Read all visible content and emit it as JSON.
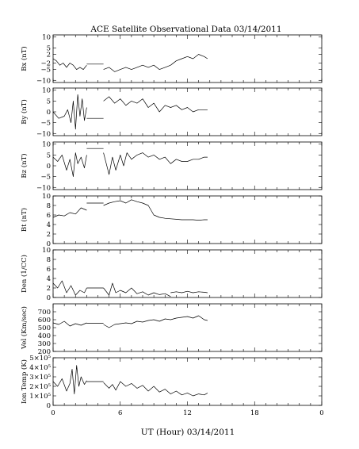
{
  "chart_data": {
    "type": "line",
    "title": "ACE Satellite Observational Data   03/14/2011",
    "xlabel": "UT (Hour)   03/14/2011",
    "x_ticks": [
      "0",
      "6",
      "12",
      "18",
      "0"
    ],
    "xlim": [
      0,
      24
    ],
    "panels": [
      {
        "id": "bx",
        "ylabel": "Bx (nT)",
        "ylim": [
          -11,
          11
        ],
        "tick_values": [
          10,
          5,
          2,
          -2,
          -5,
          -10
        ],
        "tick_labels": [
          "10",
          "5",
          "2",
          "−2",
          "−5",
          "−10"
        ],
        "series": [
          {
            "x": [
              0,
              0.3,
              0.6,
              0.9,
              1.2,
              1.5,
              1.8,
              2.1,
              2.4,
              2.7,
              3.0
            ],
            "y": [
              0,
              -1,
              -3,
              -2,
              -4,
              -2,
              -3,
              -5,
              -4,
              -5,
              -3
            ]
          },
          {
            "x": [
              3.0,
              4.5
            ],
            "y": [
              -2.5,
              -2.5
            ]
          },
          {
            "x": [
              4.5,
              5.0,
              5.5,
              6.0,
              6.5,
              7.0,
              7.5,
              8.0,
              8.5,
              9.0,
              9.5,
              10.0,
              10.5
            ],
            "y": [
              -5,
              -4,
              -6,
              -5,
              -4,
              -5,
              -4,
              -3,
              -4,
              -3,
              -5,
              -4,
              -3
            ]
          },
          {
            "x": [
              10.5,
              11.0,
              11.5,
              12.0,
              12.5,
              13.0,
              13.5,
              13.8
            ],
            "y": [
              -3,
              -1,
              0,
              1,
              0,
              2,
              1,
              0
            ]
          }
        ]
      },
      {
        "id": "by",
        "ylabel": "By (nT)",
        "ylim": [
          -11,
          11
        ],
        "tick_values": [
          10,
          5,
          0,
          -5,
          -10
        ],
        "tick_labels": [
          "10",
          "5",
          "0",
          "−5",
          "−10"
        ],
        "series": [
          {
            "x": [
              0,
              0.5,
              1.0,
              1.3,
              1.6,
              1.8,
              2.0,
              2.2,
              2.4,
              2.6,
              2.8,
              3.0
            ],
            "y": [
              0,
              -3,
              -2,
              1,
              -5,
              5,
              -8,
              8,
              -2,
              6,
              -4,
              2
            ]
          },
          {
            "x": [
              3.0,
              4.5
            ],
            "y": [
              -3,
              -3
            ]
          },
          {
            "x": [
              4.5,
              5.0,
              5.5,
              6.0,
              6.5,
              7.0,
              7.5,
              8.0,
              8.5,
              9.0,
              9.5,
              10.0,
              10.5,
              11.0,
              11.5,
              12.0,
              12.5,
              13.0,
              13.5,
              13.8
            ],
            "y": [
              5,
              7,
              4,
              6,
              3,
              5,
              4,
              6,
              2,
              4,
              0,
              3,
              2,
              3,
              1,
              2,
              0,
              1,
              1,
              1
            ]
          }
        ]
      },
      {
        "id": "bz",
        "ylabel": "Bz (nT)",
        "ylim": [
          -11,
          11
        ],
        "tick_values": [
          10,
          5,
          0,
          -5,
          -10
        ],
        "tick_labels": [
          "10",
          "5",
          "0",
          "−5",
          "−10"
        ],
        "series": [
          {
            "x": [
              0,
              0.4,
              0.8,
              1.2,
              1.5,
              1.8,
              2.0,
              2.2,
              2.5,
              2.8,
              3.0
            ],
            "y": [
              4,
              2,
              5,
              -2,
              3,
              -5,
              6,
              1,
              4,
              -1,
              5
            ]
          },
          {
            "x": [
              3.0,
              4.5
            ],
            "y": [
              8,
              8
            ]
          },
          {
            "x": [
              4.5,
              5.0,
              5.3,
              5.6,
              6.0,
              6.3,
              6.6,
              7.0,
              7.5,
              8.0,
              8.5,
              9.0,
              9.5,
              10.0,
              10.5,
              11.0,
              11.5,
              12.0,
              12.5,
              13.0,
              13.5,
              13.8
            ],
            "y": [
              6,
              -4,
              4,
              -2,
              5,
              0,
              6,
              3,
              5,
              6,
              4,
              5,
              3,
              4,
              1,
              3,
              2,
              2,
              3,
              3,
              4,
              4
            ]
          }
        ]
      },
      {
        "id": "bt",
        "ylabel": "Bt (nT)",
        "ylim": [
          0,
          10
        ],
        "tick_values": [
          10,
          8,
          6,
          4,
          2,
          0
        ],
        "tick_labels": [
          "10",
          "8",
          "6",
          "4",
          "2",
          "0"
        ],
        "series": [
          {
            "x": [
              0,
              0.5,
              1.0,
              1.5,
              2.0,
              2.5,
              3.0
            ],
            "y": [
              5.5,
              6,
              5.8,
              6.5,
              6.2,
              7.5,
              7
            ]
          },
          {
            "x": [
              3.0,
              4.5
            ],
            "y": [
              8.5,
              8.5
            ]
          },
          {
            "x": [
              4.5,
              5.0,
              5.5,
              6.0,
              6.5,
              7.0,
              7.5,
              8.0,
              8.5,
              9.0,
              9.5,
              10.0,
              10.5,
              11.0,
              11.5,
              12.0,
              12.5,
              13.0,
              13.5,
              13.8
            ],
            "y": [
              8,
              8.5,
              8.8,
              9,
              8.5,
              9.2,
              8.8,
              8.5,
              8,
              6,
              5.5,
              5.3,
              5.2,
              5.1,
              5,
              5,
              5,
              4.9,
              5,
              5
            ]
          }
        ]
      },
      {
        "id": "den",
        "ylabel": "Den (1/CC)",
        "ylim": [
          0,
          10
        ],
        "tick_values": [
          10,
          8,
          6,
          4,
          2,
          0
        ],
        "tick_labels": [
          "10",
          "8",
          "6",
          "4",
          "2",
          "0"
        ],
        "series": [
          {
            "x": [
              0,
              0.4,
              0.8,
              1.2,
              1.6,
              2.0,
              2.4,
              2.8,
              3.0
            ],
            "y": [
              3,
              2,
              3.5,
              1,
              2.5,
              0.5,
              1.5,
              1,
              2
            ]
          },
          {
            "x": [
              3.0,
              4.5
            ],
            "y": [
              2,
              2
            ]
          },
          {
            "x": [
              4.5,
              5.0,
              5.3,
              5.6,
              6.0,
              6.5,
              7.0,
              7.5,
              8.0,
              8.5,
              9.0,
              9.5,
              10.0,
              10.5
            ],
            "y": [
              2,
              0.5,
              3,
              1,
              1.5,
              1,
              2,
              0.8,
              1.2,
              0.5,
              1,
              0.6,
              0.8,
              0.2
            ]
          },
          {
            "x": [
              10.5,
              11.0,
              11.5,
              12.0,
              12.5,
              13.0,
              13.5,
              13.8
            ],
            "y": [
              1,
              1.2,
              1,
              1.3,
              1,
              1.2,
              1.1,
              1
            ]
          }
        ]
      },
      {
        "id": "vel",
        "ylabel": "Vel (Km/sec)",
        "ylim": [
          200,
          800
        ],
        "tick_values": [
          700,
          600,
          500,
          400,
          300,
          200
        ],
        "tick_labels": [
          "700",
          "600",
          "500",
          "400",
          "300",
          "200"
        ],
        "series": [
          {
            "x": [
              0,
              0.5,
              1.0,
              1.5,
              2.0,
              2.5,
              3.0
            ],
            "y": [
              560,
              540,
              580,
              520,
              550,
              530,
              560
            ]
          },
          {
            "x": [
              3.0,
              4.5
            ],
            "y": [
              555,
              555
            ]
          },
          {
            "x": [
              4.5,
              5.0,
              5.5,
              6.0,
              6.5,
              7.0,
              7.5,
              8.0,
              8.5,
              9.0,
              9.5,
              10.0,
              10.5,
              11.0,
              11.5,
              12.0,
              12.5,
              13.0,
              13.5,
              13.8
            ],
            "y": [
              540,
              500,
              540,
              550,
              560,
              550,
              580,
              570,
              590,
              600,
              580,
              610,
              600,
              620,
              630,
              640,
              620,
              650,
              600,
              590
            ]
          }
        ]
      },
      {
        "id": "temp",
        "ylabel": "Ion Temp (K)",
        "ylim": [
          0,
          500000
        ],
        "tick_values": [
          500000,
          400000,
          300000,
          200000,
          100000,
          0
        ],
        "tick_labels": [
          "5×10⁵",
          "4×10⁵",
          "3×10⁵",
          "2×10⁵",
          "1×10⁵",
          "0"
        ],
        "series": [
          {
            "x": [
              0,
              0.4,
              0.8,
              1.2,
              1.5,
              1.7,
              1.9,
              2.1,
              2.3,
              2.5,
              2.8,
              3.0
            ],
            "y": [
              250000,
              200000,
              280000,
              150000,
              230000,
              380000,
              120000,
              420000,
              200000,
              300000,
              220000,
              260000
            ]
          },
          {
            "x": [
              3.0,
              4.5
            ],
            "y": [
              250000,
              250000
            ]
          },
          {
            "x": [
              4.5,
              5.0,
              5.3,
              5.6,
              6.0,
              6.5,
              7.0,
              7.5,
              8.0,
              8.5,
              9.0,
              9.5,
              10.0,
              10.5,
              11.0,
              11.5,
              12.0,
              12.5,
              13.0,
              13.5,
              13.8
            ],
            "y": [
              240000,
              180000,
              220000,
              160000,
              250000,
              200000,
              230000,
              180000,
              210000,
              150000,
              200000,
              140000,
              170000,
              120000,
              150000,
              110000,
              130000,
              100000,
              120000,
              110000,
              130000
            ]
          }
        ]
      }
    ]
  }
}
